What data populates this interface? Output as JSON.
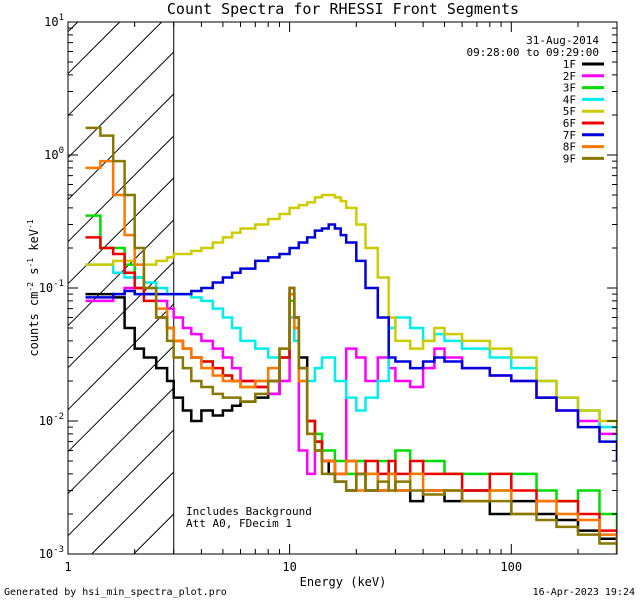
{
  "chart_data": {
    "type": "line",
    "title": "Count Spectra for RHESSI Front Segments",
    "xlabel": "Energy (keV)",
    "ylabel_parts": {
      "base": "counts cm",
      "exp1": "-2",
      "mid": " s",
      "exp2": "-1",
      "end": " keV",
      "exp3": "-1"
    },
    "x_scale": "log",
    "y_scale": "log",
    "xlim": [
      1,
      300
    ],
    "ylim": [
      0.001,
      10
    ],
    "x_ticks": [
      {
        "value": 1,
        "label": "1"
      },
      {
        "value": 10,
        "label": "10"
      },
      {
        "value": 100,
        "label": "100"
      }
    ],
    "y_ticks": [
      {
        "value": 0.001,
        "mant": "10",
        "exp": "-3"
      },
      {
        "value": 0.01,
        "mant": "10",
        "exp": "-2"
      },
      {
        "value": 0.1,
        "mant": "10",
        "exp": "-1"
      },
      {
        "value": 1,
        "mant": "10",
        "exp": "0"
      },
      {
        "value": 10,
        "mant": "10",
        "exp": "1"
      }
    ],
    "hatched_region_xmax": 3,
    "date_label": "31-Aug-2014",
    "time_range": "09:28:00 to 09:29:00",
    "annotations": [
      "Includes Background",
      "Att A0, FDecim 1"
    ],
    "series": [
      {
        "name": "1F",
        "color": "#000000",
        "x": [
          1.2,
          1.4,
          1.6,
          1.8,
          2.0,
          2.2,
          2.5,
          2.8,
          3.0,
          3.3,
          3.6,
          4.0,
          4.5,
          5.0,
          5.5,
          6.0,
          7.0,
          8.0,
          9.0,
          10.0,
          10.5,
          11.0,
          12.0,
          13.0,
          14.0,
          15.0,
          16.0,
          18.0,
          20.0,
          22.0,
          25.0,
          28.0,
          30.0,
          35.0,
          40.0,
          50.0,
          60.0,
          80.0,
          100.0,
          130.0,
          160.0,
          200.0,
          250.0,
          300.0
        ],
        "y": [
          0.09,
          0.09,
          0.085,
          0.05,
          0.035,
          0.03,
          0.025,
          0.02,
          0.015,
          0.012,
          0.01,
          0.012,
          0.011,
          0.012,
          0.013,
          0.014,
          0.015,
          0.016,
          0.03,
          0.09,
          0.06,
          0.03,
          0.01,
          0.007,
          0.005,
          0.004,
          0.0035,
          0.003,
          0.004,
          0.003,
          0.003,
          0.004,
          0.003,
          0.0025,
          0.003,
          0.0025,
          0.003,
          0.002,
          0.0025,
          0.002,
          0.0018,
          0.0015,
          0.0013,
          0.0012
        ]
      },
      {
        "name": "2F",
        "color": "#ff00ff",
        "x": [
          1.2,
          1.4,
          1.6,
          1.8,
          2.0,
          2.2,
          2.5,
          2.8,
          3.0,
          3.3,
          3.6,
          4.0,
          4.5,
          5.0,
          5.5,
          6.0,
          7.0,
          8.0,
          9.0,
          10.0,
          10.5,
          11.0,
          12.0,
          13.0,
          14.0,
          16.0,
          18.0,
          20.0,
          22.0,
          25.0,
          28.0,
          30.0,
          35.0,
          40.0,
          45.0,
          50.0,
          60.0,
          80.0,
          100.0,
          130.0,
          160.0,
          200.0,
          250.0,
          300.0
        ],
        "y": [
          0.08,
          0.08,
          0.09,
          0.1,
          0.1,
          0.09,
          0.08,
          0.07,
          0.06,
          0.05,
          0.045,
          0.04,
          0.035,
          0.03,
          0.025,
          0.02,
          0.018,
          0.016,
          0.02,
          0.06,
          0.04,
          0.006,
          0.004,
          0.006,
          0.005,
          0.004,
          0.035,
          0.03,
          0.02,
          0.03,
          0.025,
          0.02,
          0.018,
          0.025,
          0.035,
          0.03,
          0.025,
          0.022,
          0.02,
          0.015,
          0.012,
          0.01,
          0.008,
          0.007
        ]
      },
      {
        "name": "3F",
        "color": "#00dd00",
        "x": [
          1.2,
          1.4,
          1.6,
          1.8,
          2.0,
          2.2,
          2.5,
          2.8,
          3.0,
          3.3,
          3.6,
          4.0,
          4.5,
          5.0,
          5.5,
          6.0,
          7.0,
          8.0,
          9.0,
          10.0,
          10.5,
          11.0,
          12.0,
          13.0,
          14.0,
          16.0,
          18.0,
          20.0,
          22.0,
          25.0,
          28.0,
          30.0,
          35.0,
          40.0,
          50.0,
          60.0,
          80.0,
          100.0,
          130.0,
          160.0,
          200.0,
          250.0,
          300.0
        ],
        "y": [
          0.35,
          0.2,
          0.2,
          0.15,
          0.12,
          0.09,
          0.06,
          0.05,
          0.04,
          0.035,
          0.03,
          0.028,
          0.025,
          0.022,
          0.02,
          0.018,
          0.02,
          0.02,
          0.03,
          0.08,
          0.05,
          0.02,
          0.01,
          0.008,
          0.006,
          0.005,
          0.004,
          0.005,
          0.004,
          0.005,
          0.004,
          0.006,
          0.004,
          0.005,
          0.004,
          0.004,
          0.003,
          0.004,
          0.003,
          0.0025,
          0.003,
          0.002,
          0.0015
        ]
      },
      {
        "name": "4F",
        "color": "#00eeee",
        "x": [
          1.2,
          1.4,
          1.6,
          1.8,
          2.0,
          2.2,
          2.5,
          2.8,
          3.0,
          3.3,
          3.6,
          4.0,
          4.5,
          5.0,
          5.5,
          6.0,
          7.0,
          8.0,
          9.0,
          10.0,
          10.5,
          11.0,
          12.0,
          13.0,
          14.0,
          16.0,
          18.0,
          20.0,
          22.0,
          25.0,
          28.0,
          30.0,
          35.0,
          40.0,
          45.0,
          50.0,
          60.0,
          80.0,
          100.0,
          130.0,
          160.0,
          200.0,
          250.0,
          300.0
        ],
        "y": [
          0.15,
          0.15,
          0.13,
          0.12,
          0.12,
          0.11,
          0.1,
          0.09,
          0.09,
          0.09,
          0.085,
          0.08,
          0.07,
          0.06,
          0.05,
          0.04,
          0.035,
          0.03,
          0.03,
          0.06,
          0.04,
          0.025,
          0.02,
          0.025,
          0.03,
          0.02,
          0.015,
          0.012,
          0.015,
          0.02,
          0.05,
          0.06,
          0.05,
          0.04,
          0.045,
          0.04,
          0.035,
          0.03,
          0.025,
          0.02,
          0.015,
          0.012,
          0.009,
          0.007
        ]
      },
      {
        "name": "5F",
        "color": "#cccc00",
        "x": [
          1.2,
          1.4,
          1.6,
          1.8,
          2.0,
          2.2,
          2.5,
          2.8,
          3.0,
          3.3,
          3.6,
          4.0,
          4.5,
          5.0,
          5.5,
          6.0,
          7.0,
          8.0,
          9.0,
          10.0,
          11.0,
          12.0,
          13.0,
          14.0,
          15.0,
          16.0,
          17.0,
          18.0,
          20.0,
          22.0,
          25.0,
          28.0,
          30.0,
          35.0,
          40.0,
          45.0,
          50.0,
          60.0,
          80.0,
          100.0,
          130.0,
          160.0,
          200.0,
          250.0,
          300.0
        ],
        "y": [
          0.15,
          0.15,
          0.16,
          0.16,
          0.15,
          0.15,
          0.16,
          0.17,
          0.18,
          0.18,
          0.19,
          0.2,
          0.22,
          0.24,
          0.26,
          0.28,
          0.3,
          0.33,
          0.36,
          0.4,
          0.42,
          0.44,
          0.48,
          0.5,
          0.5,
          0.48,
          0.45,
          0.4,
          0.3,
          0.2,
          0.12,
          0.06,
          0.04,
          0.035,
          0.04,
          0.05,
          0.045,
          0.04,
          0.035,
          0.03,
          0.02,
          0.015,
          0.012,
          0.01,
          0.008
        ]
      },
      {
        "name": "6F",
        "color": "#ee0000",
        "x": [
          1.2,
          1.4,
          1.6,
          1.8,
          2.0,
          2.2,
          2.5,
          2.8,
          3.0,
          3.3,
          3.6,
          4.0,
          4.5,
          5.0,
          5.5,
          6.0,
          7.0,
          8.0,
          9.0,
          10.0,
          10.5,
          11.0,
          12.0,
          13.0,
          14.0,
          16.0,
          18.0,
          20.0,
          22.0,
          25.0,
          28.0,
          30.0,
          35.0,
          40.0,
          50.0,
          60.0,
          80.0,
          100.0,
          130.0,
          160.0,
          200.0,
          250.0,
          300.0
        ],
        "y": [
          0.24,
          0.2,
          0.18,
          0.13,
          0.1,
          0.08,
          0.06,
          0.05,
          0.04,
          0.035,
          0.03,
          0.028,
          0.025,
          0.022,
          0.02,
          0.02,
          0.018,
          0.02,
          0.03,
          0.1,
          0.06,
          0.025,
          0.01,
          0.007,
          0.005,
          0.004,
          0.005,
          0.004,
          0.005,
          0.004,
          0.005,
          0.004,
          0.005,
          0.004,
          0.004,
          0.003,
          0.004,
          0.003,
          0.0025,
          0.0025,
          0.002,
          0.0015,
          0.0012
        ]
      },
      {
        "name": "7F",
        "color": "#0000dd",
        "x": [
          1.2,
          1.4,
          1.6,
          1.8,
          2.0,
          2.2,
          2.5,
          2.8,
          3.0,
          3.3,
          3.6,
          4.0,
          4.5,
          5.0,
          5.5,
          6.0,
          7.0,
          8.0,
          9.0,
          10.0,
          11.0,
          12.0,
          13.0,
          14.0,
          15.0,
          16.0,
          17.0,
          18.0,
          20.0,
          22.0,
          25.0,
          28.0,
          30.0,
          35.0,
          40.0,
          45.0,
          50.0,
          60.0,
          80.0,
          100.0,
          130.0,
          160.0,
          200.0,
          250.0,
          300.0
        ],
        "y": [
          0.085,
          0.085,
          0.09,
          0.095,
          0.09,
          0.09,
          0.09,
          0.09,
          0.09,
          0.09,
          0.095,
          0.1,
          0.11,
          0.12,
          0.13,
          0.14,
          0.16,
          0.17,
          0.18,
          0.2,
          0.22,
          0.24,
          0.27,
          0.28,
          0.3,
          0.28,
          0.25,
          0.22,
          0.16,
          0.1,
          0.06,
          0.03,
          0.028,
          0.025,
          0.028,
          0.03,
          0.028,
          0.025,
          0.022,
          0.02,
          0.015,
          0.012,
          0.009,
          0.007,
          0.005
        ]
      },
      {
        "name": "8F",
        "color": "#ff7700",
        "x": [
          1.2,
          1.4,
          1.6,
          1.8,
          2.0,
          2.2,
          2.5,
          2.8,
          3.0,
          3.3,
          3.6,
          4.0,
          4.5,
          5.0,
          5.5,
          6.0,
          7.0,
          8.0,
          9.0,
          10.0,
          10.5,
          11.0,
          12.0,
          13.0,
          14.0,
          16.0,
          18.0,
          20.0,
          22.0,
          25.0,
          28.0,
          30.0,
          35.0,
          40.0,
          50.0,
          60.0,
          80.0,
          100.0,
          130.0,
          160.0,
          200.0,
          250.0,
          300.0
        ],
        "y": [
          0.8,
          0.9,
          0.5,
          0.25,
          0.15,
          0.1,
          0.07,
          0.05,
          0.04,
          0.035,
          0.03,
          0.025,
          0.022,
          0.02,
          0.02,
          0.018,
          0.02,
          0.025,
          0.035,
          0.09,
          0.05,
          0.02,
          0.008,
          0.006,
          0.005,
          0.004,
          0.005,
          0.003,
          0.004,
          0.003,
          0.004,
          0.003,
          0.004,
          0.003,
          0.003,
          0.0025,
          0.003,
          0.002,
          0.0025,
          0.002,
          0.0018,
          0.0014,
          0.0011
        ]
      },
      {
        "name": "9F",
        "color": "#887700",
        "x": [
          1.2,
          1.4,
          1.6,
          1.8,
          2.0,
          2.2,
          2.5,
          2.8,
          3.0,
          3.3,
          3.6,
          4.0,
          4.5,
          5.0,
          5.5,
          6.0,
          7.0,
          8.0,
          9.0,
          10.0,
          10.5,
          11.0,
          12.0,
          13.0,
          14.0,
          16.0,
          18.0,
          20.0,
          22.0,
          25.0,
          28.0,
          30.0,
          35.0,
          40.0,
          50.0,
          60.0,
          80.0,
          100.0,
          130.0,
          160.0,
          200.0,
          250.0,
          300.0
        ],
        "y": [
          1.6,
          1.4,
          0.9,
          0.5,
          0.2,
          0.1,
          0.06,
          0.04,
          0.03,
          0.025,
          0.02,
          0.018,
          0.016,
          0.015,
          0.015,
          0.014,
          0.016,
          0.02,
          0.035,
          0.1,
          0.06,
          0.025,
          0.008,
          0.006,
          0.004,
          0.0035,
          0.003,
          0.004,
          0.003,
          0.0035,
          0.003,
          0.0035,
          0.003,
          0.0028,
          0.003,
          0.0025,
          0.0025,
          0.002,
          0.0018,
          0.0016,
          0.0014,
          0.0012,
          0.001
        ]
      }
    ]
  },
  "footer": {
    "generator": "Generated by hsi_min_spectra_plot.pro",
    "timestamp": "16-Apr-2023 19:24"
  }
}
